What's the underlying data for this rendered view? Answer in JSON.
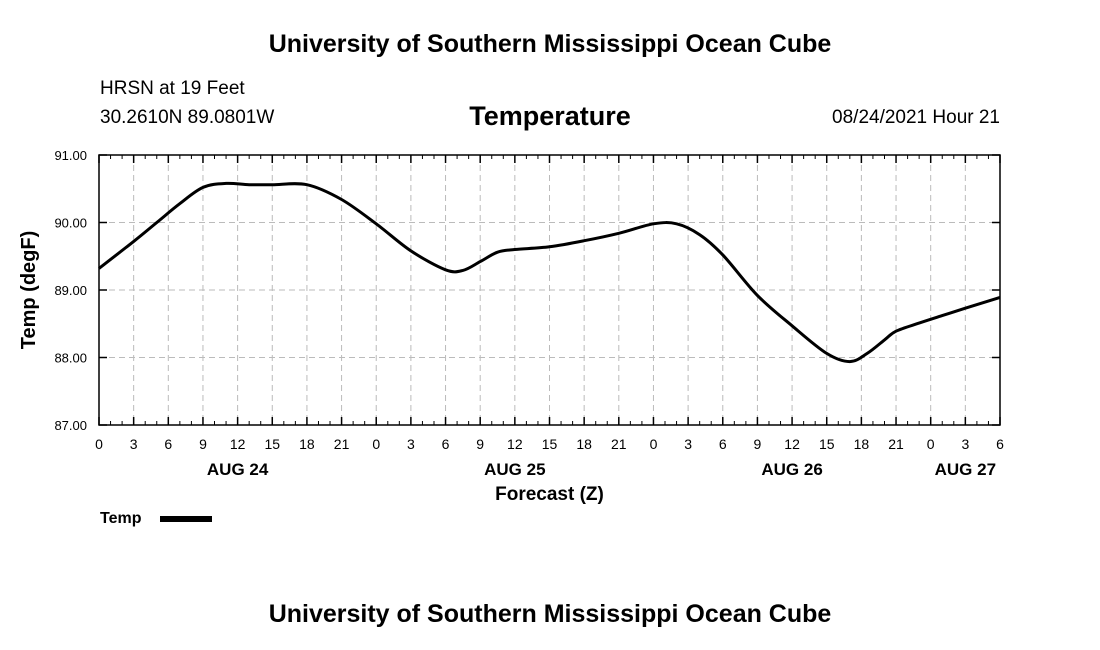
{
  "header": {
    "top_title": "University of Southern Mississippi Ocean Cube",
    "station": "HRSN at 19 Feet",
    "coords": "30.2610N  89.0801W",
    "chart_title": "Temperature",
    "datetime": "08/24/2021 Hour 21"
  },
  "footer": {
    "bottom_title": "University of Southern Mississippi Ocean Cube"
  },
  "legend": {
    "label": "Temp"
  },
  "chart_data": {
    "type": "line",
    "title": "Temperature",
    "xlabel": "Forecast (Z)",
    "ylabel": "Temp (degF)",
    "ylim": [
      87.0,
      91.0
    ],
    "xlim": [
      0,
      78
    ],
    "grid": true,
    "legend_position": "bottom-left",
    "y_ticks": [
      "87.00",
      "88.00",
      "89.00",
      "90.00",
      "91.00"
    ],
    "x_ticks": [
      {
        "h": 0,
        "label": "0"
      },
      {
        "h": 3,
        "label": "3"
      },
      {
        "h": 6,
        "label": "6"
      },
      {
        "h": 9,
        "label": "9"
      },
      {
        "h": 12,
        "label": "12"
      },
      {
        "h": 15,
        "label": "15"
      },
      {
        "h": 18,
        "label": "18"
      },
      {
        "h": 21,
        "label": "21"
      },
      {
        "h": 24,
        "label": "0"
      },
      {
        "h": 27,
        "label": "3"
      },
      {
        "h": 30,
        "label": "6"
      },
      {
        "h": 33,
        "label": "9"
      },
      {
        "h": 36,
        "label": "12"
      },
      {
        "h": 39,
        "label": "15"
      },
      {
        "h": 42,
        "label": "18"
      },
      {
        "h": 45,
        "label": "21"
      },
      {
        "h": 48,
        "label": "0"
      },
      {
        "h": 51,
        "label": "3"
      },
      {
        "h": 54,
        "label": "6"
      },
      {
        "h": 57,
        "label": "9"
      },
      {
        "h": 60,
        "label": "12"
      },
      {
        "h": 63,
        "label": "15"
      },
      {
        "h": 66,
        "label": "18"
      },
      {
        "h": 69,
        "label": "21"
      },
      {
        "h": 72,
        "label": "0"
      },
      {
        "h": 75,
        "label": "3"
      },
      {
        "h": 78,
        "label": "6"
      }
    ],
    "day_labels": [
      {
        "h": 12,
        "label": "AUG 24"
      },
      {
        "h": 36,
        "label": "AUG 25"
      },
      {
        "h": 60,
        "label": "AUG 26"
      },
      {
        "h": 75,
        "label": "AUG 27"
      }
    ],
    "series": [
      {
        "name": "Temp",
        "color": "#000000",
        "x": [
          0,
          3,
          5,
          7,
          9,
          11,
          13,
          15,
          18,
          21,
          24,
          27,
          30,
          31.5,
          33,
          34.5,
          36,
          39,
          42,
          45,
          48,
          50,
          52,
          54,
          57,
          60,
          63,
          65,
          66.5,
          68,
          69,
          71,
          73,
          75,
          78
        ],
        "y": [
          89.32,
          89.72,
          90.0,
          90.28,
          90.52,
          90.58,
          90.56,
          90.56,
          90.56,
          90.34,
          89.98,
          89.58,
          89.3,
          89.29,
          89.42,
          89.56,
          89.6,
          89.64,
          89.73,
          89.84,
          89.98,
          89.98,
          89.82,
          89.52,
          88.92,
          88.47,
          88.06,
          87.94,
          88.06,
          88.26,
          88.39,
          88.51,
          88.62,
          88.73,
          88.89
        ]
      }
    ]
  }
}
